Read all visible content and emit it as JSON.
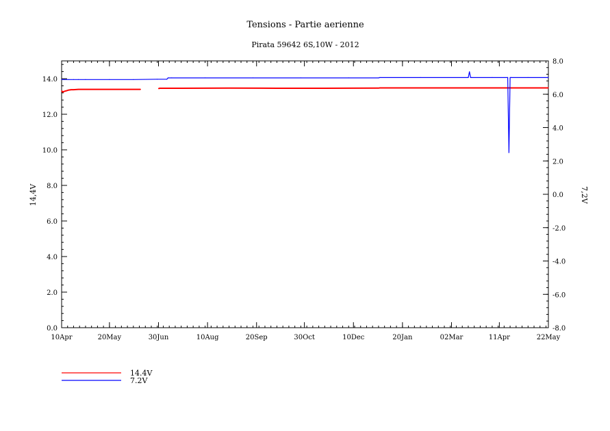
{
  "chart_data": {
    "type": "line",
    "title": "Tensions - Partie aerienne",
    "subtitle": "Pirata 59642 6S,10W - 2012",
    "ylabel_left": "14,4V",
    "ylabel_right": "7,2V",
    "x_tick_labels": [
      "10Apr",
      "20May",
      "30Jun",
      "10Aug",
      "20Sep",
      "30Oct",
      "10Dec",
      "20Jan",
      "02Mar",
      "11Apr",
      "22May"
    ],
    "x_tick_days": [
      0,
      40,
      81,
      122,
      163,
      203,
      244,
      285,
      326,
      366,
      407
    ],
    "xlim_days": [
      0,
      407
    ],
    "ylim_left": [
      0.0,
      15.0
    ],
    "ylim_right": [
      -8.0,
      8.0
    ],
    "y_left_ticks": [
      "0.0",
      "2.0",
      "4.0",
      "6.0",
      "8.0",
      "10.0",
      "12.0",
      "14.0"
    ],
    "y_right_ticks": [
      "-8.0",
      "-6.0",
      "-4.0",
      "-2.0",
      "0.0",
      "2.0",
      "4.0",
      "6.0",
      "8.0"
    ],
    "grid": false,
    "legend_placement": "bottom-left",
    "series": [
      {
        "name": "14.4V",
        "axis": "left",
        "color": "#ff0000",
        "x": [
          0,
          1,
          2,
          4,
          6,
          8,
          10,
          14,
          20,
          30,
          40,
          50,
          60,
          66,
          67,
          80,
          81,
          82,
          100,
          140,
          180,
          220,
          265,
          266,
          300,
          340,
          380,
          407
        ],
        "y": [
          13.32,
          13.25,
          13.28,
          13.32,
          13.36,
          13.38,
          13.38,
          13.4,
          13.4,
          13.4,
          13.4,
          13.4,
          13.4,
          13.4,
          null,
          null,
          13.44,
          13.46,
          13.46,
          13.47,
          13.46,
          13.46,
          13.47,
          13.48,
          13.48,
          13.48,
          13.48,
          13.48
        ]
      },
      {
        "name": "7.2V",
        "axis": "right",
        "color": "#0000ff",
        "x": [
          0,
          2,
          6,
          10,
          14,
          20,
          40,
          60,
          80,
          88,
          89,
          92,
          120,
          160,
          200,
          240,
          265,
          266,
          300,
          340,
          341,
          342,
          343,
          360,
          373,
          374,
          375,
          376,
          390,
          407
        ],
        "y": [
          6.88,
          6.88,
          6.88,
          6.88,
          6.88,
          6.88,
          6.88,
          6.88,
          6.9,
          6.9,
          6.98,
          6.98,
          6.98,
          6.98,
          6.98,
          6.98,
          6.98,
          7.0,
          7.0,
          7.0,
          7.35,
          7.0,
          7.0,
          7.0,
          7.0,
          2.5,
          7.0,
          7.0,
          7.0,
          7.0
        ]
      }
    ]
  }
}
